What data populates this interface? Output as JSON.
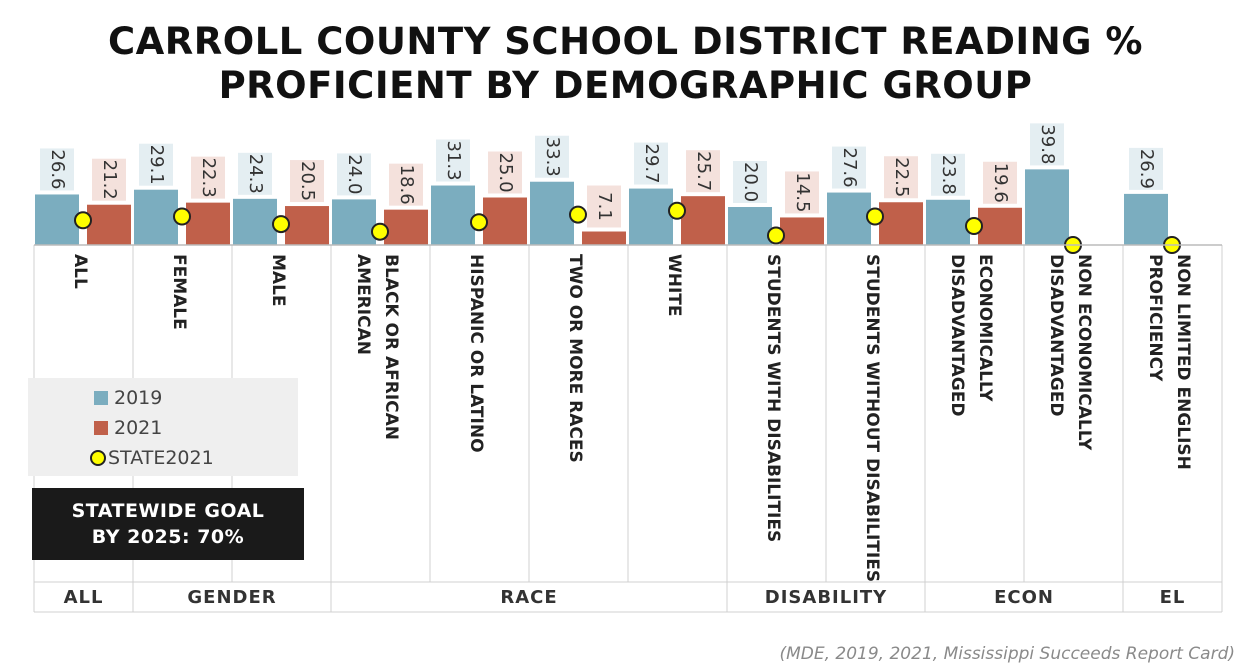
{
  "title_line1": "CARROLL COUNTY SCHOOL DISTRICT READING %",
  "title_line2": "PROFICIENT BY DEMOGRAPHIC GROUP",
  "source": "(MDE, 2019, 2021, Mississippi Succeeds Report Card)",
  "goal_line1": "STATEWIDE GOAL",
  "goal_line2": "BY 2025: 70%",
  "legend": {
    "s2019": "2019",
    "s2021": "2021",
    "state": "STATE2021"
  },
  "colors": {
    "s2019": "#7badbf",
    "s2021": "#c0604a",
    "state": "#ffff00"
  },
  "chart_data": {
    "type": "bar",
    "title": "CARROLL COUNTY SCHOOL DISTRICT READING % PROFICIENT BY DEMOGRAPHIC GROUP",
    "categories": [
      "ALL",
      "FEMALE",
      "MALE",
      "BLACK OR AFRICAN AMERICAN",
      "HISPANIC OR LATINO",
      "TWO OR MORE RACES",
      "WHITE",
      "STUDENTS WITH DISABILITIES",
      "STUDENTS WITHOUT DISABILITIES",
      "ECONOMICALLY DISADVANTAGED",
      "NON ECONOMICALLY DISADVANTAGED",
      "NON LIMITED ENGLISH PROFICIENCY"
    ],
    "category_lines": [
      [
        "ALL"
      ],
      [
        "FEMALE"
      ],
      [
        "MALE"
      ],
      [
        "BLACK OR AFRICAN",
        "AMERICAN"
      ],
      [
        "HISPANIC OR LATINO"
      ],
      [
        "TWO OR MORE RACES"
      ],
      [
        "WHITE"
      ],
      [
        "STUDENTS WITH DISABILITIES"
      ],
      [
        "STUDENTS WITHOUT DISABILITIES"
      ],
      [
        "ECONOMICALLY",
        "DISADVANTAGED"
      ],
      [
        "NON ECONOMICALLY",
        "DISADVANTAGED"
      ],
      [
        "NON LIMITED ENGLISH",
        "PROFICIENCY"
      ]
    ],
    "series": [
      {
        "name": "2019",
        "values": [
          26.6,
          29.1,
          24.3,
          24.0,
          31.3,
          33.3,
          29.7,
          20.0,
          27.6,
          23.8,
          39.8,
          26.9
        ]
      },
      {
        "name": "2021",
        "values": [
          21.2,
          22.3,
          20.5,
          18.6,
          25.0,
          7.1,
          25.7,
          14.5,
          22.5,
          19.6,
          null,
          null
        ]
      },
      {
        "name": "STATE2021",
        "values": [
          13,
          15,
          11,
          7,
          12,
          16,
          18,
          5,
          15,
          10,
          0,
          0
        ]
      }
    ],
    "groups": [
      {
        "name": "ALL",
        "span": 1
      },
      {
        "name": "GENDER",
        "span": 2
      },
      {
        "name": "RACE",
        "span": 4
      },
      {
        "name": "DISABILITY",
        "span": 2
      },
      {
        "name": "ECON",
        "span": 2
      },
      {
        "name": "EL",
        "span": 1
      }
    ],
    "ylim": [
      0,
      60
    ],
    "legend_position": "left"
  }
}
